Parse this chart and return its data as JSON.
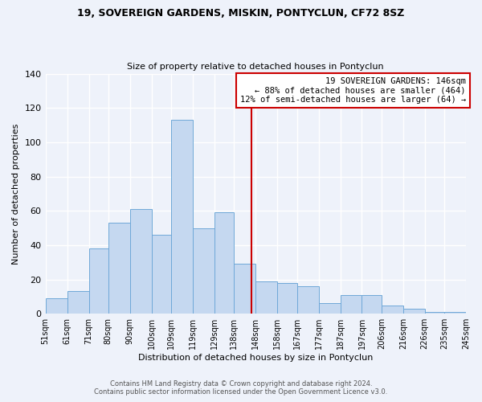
{
  "title1": "19, SOVEREIGN GARDENS, MISKIN, PONTYCLUN, CF72 8SZ",
  "title2": "Size of property relative to detached houses in Pontyclun",
  "xlabel": "Distribution of detached houses by size in Pontyclun",
  "ylabel": "Number of detached properties",
  "bin_edges": [
    51,
    61,
    71,
    80,
    90,
    100,
    109,
    119,
    129,
    138,
    148,
    158,
    167,
    177,
    187,
    197,
    206,
    216,
    226,
    235,
    245
  ],
  "bar_heights": [
    9,
    13,
    38,
    53,
    61,
    46,
    113,
    50,
    59,
    29,
    19,
    18,
    16,
    6,
    11,
    11,
    5,
    3,
    1,
    1
  ],
  "bar_color": "#c5d8f0",
  "bar_edge_color": "#6fa8d8",
  "vline_x": 146,
  "vline_color": "#cc0000",
  "ylim": [
    0,
    140
  ],
  "yticks": [
    0,
    20,
    40,
    60,
    80,
    100,
    120,
    140
  ],
  "annotation_title": "19 SOVEREIGN GARDENS: 146sqm",
  "annotation_line1": "← 88% of detached houses are smaller (464)",
  "annotation_line2": "12% of semi-detached houses are larger (64) →",
  "annotation_box_color": "#cc0000",
  "footer1": "Contains HM Land Registry data © Crown copyright and database right 2024.",
  "footer2": "Contains public sector information licensed under the Open Government Licence v3.0.",
  "bg_color": "#eef2fa",
  "grid_color": "#ffffff",
  "title1_fontsize": 9,
  "title2_fontsize": 8,
  "axis_label_fontsize": 8,
  "tick_fontsize": 7,
  "footer_fontsize": 6
}
